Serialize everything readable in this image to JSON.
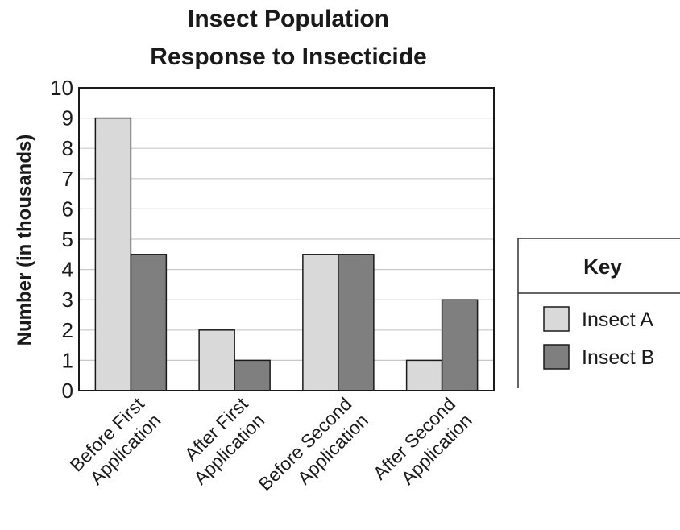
{
  "chart_data": {
    "type": "bar",
    "title_lines": [
      "Insect Population",
      "Response to Insecticide"
    ],
    "ylabel": "Number (in thousands)",
    "ylim": [
      0,
      10
    ],
    "yticks": [
      "0",
      "1",
      "2",
      "3",
      "4",
      "5",
      "6",
      "7",
      "8",
      "9",
      "10"
    ],
    "grid": true,
    "categories": [
      [
        "Before First",
        "Application"
      ],
      [
        "After First",
        "Application"
      ],
      [
        "Before Second",
        "Application"
      ],
      [
        "After Second",
        "Application"
      ]
    ],
    "series": [
      {
        "name": "Insect A",
        "values": [
          9,
          2,
          4.5,
          1
        ],
        "color": "#d9d9d9"
      },
      {
        "name": "Insect B",
        "values": [
          4.5,
          1,
          4.5,
          3
        ],
        "color": "#7f7f7f"
      }
    ],
    "legend": {
      "title": "Key",
      "placement": "right"
    }
  }
}
